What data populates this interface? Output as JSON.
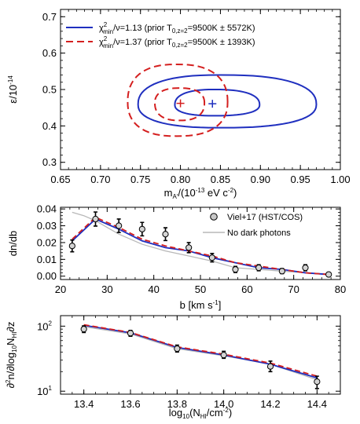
{
  "chart_data": [
    {
      "type": "contour",
      "xlabel": "m_A'/(10^-13 eV c^-2)",
      "ylabel": "ε/10^-14",
      "xlim": [
        0.65,
        1.0
      ],
      "ylim": [
        0.28,
        0.72
      ],
      "xticks": [
        "0.65",
        "0.70",
        "0.75",
        "0.80",
        "0.85",
        "0.90",
        "0.95",
        "1.00"
      ],
      "yticks": [
        "0.3",
        "0.4",
        "0.5",
        "0.6",
        "0.7"
      ],
      "legend_position": "top-left",
      "series": [
        {
          "name": "χ²min/ν=1.13 (prior T0,z=2=9500K ± 5572K)",
          "legend_parts": [
            "χ",
            "2",
            "min",
            "/ν=1.13 (prior T",
            "0,z=2",
            "=9500K ± 5572K)"
          ],
          "color": "#1f2fbf",
          "linestyle": "solid",
          "best_fit": {
            "x": 0.84,
            "y": 0.461
          },
          "contours": [
            {
              "cx": 0.85,
              "cy": 0.459,
              "rx_left": 0.103,
              "rx_right": 0.12,
              "ry_up": 0.081,
              "ry_down": 0.064
            },
            {
              "cx": 0.842,
              "cy": 0.458,
              "rx_left": 0.049,
              "rx_right": 0.057,
              "ry_up": 0.042,
              "ry_down": 0.03
            }
          ]
        },
        {
          "name": "χ²min/ν=1.37 (prior T0,z=2=9500K ± 1393K)",
          "legend_parts": [
            "χ",
            "2",
            "min",
            "/ν=1.37 (prior T",
            "0,z=2",
            "=9500K ± 1393K)"
          ],
          "color": "#d41f1f",
          "linestyle": "dashed",
          "best_fit": {
            "x": 0.8,
            "y": 0.462
          },
          "contours": [
            {
              "cx": 0.795,
              "cy": 0.466,
              "rx_left": 0.061,
              "rx_right": 0.064,
              "ry_up": 0.103,
              "ry_down": 0.094
            },
            {
              "cx": 0.799,
              "cy": 0.463,
              "rx_left": 0.031,
              "rx_right": 0.031,
              "ry_up": 0.041,
              "ry_down": 0.048
            }
          ]
        }
      ]
    },
    {
      "type": "line",
      "xlabel": "b [km s^-1]",
      "ylabel": "dn/db",
      "xlim": [
        20,
        80
      ],
      "ylim": [
        -0.002,
        0.041
      ],
      "xticks": [
        "20",
        "30",
        "40",
        "50",
        "60",
        "70",
        "80"
      ],
      "yticks": [
        "0.00",
        "0.01",
        "0.02",
        "0.03",
        "0.04"
      ],
      "legend_position": "top-right",
      "x": [
        22.5,
        27.5,
        32.5,
        37.5,
        42.5,
        47.5,
        52.5,
        57.5,
        62.5,
        67.5,
        72.5,
        77.5
      ],
      "observations": {
        "name": "Viel+17 (HST/COS)",
        "y": [
          0.018,
          0.034,
          0.03,
          0.028,
          0.025,
          0.017,
          0.011,
          0.004,
          0.005,
          0.003,
          0.005,
          0.001
        ],
        "err": [
          0.0035,
          0.0042,
          0.004,
          0.004,
          0.0038,
          0.003,
          0.0025,
          0.0018,
          0.0018,
          0.0015,
          0.0018,
          0.001
        ]
      },
      "series": [
        {
          "name": "No dark photons",
          "color": "#b8b8b8",
          "x": [
            22.5,
            25,
            27.5,
            32.5,
            37.5,
            42.5,
            47.5,
            52.5,
            57.5,
            62.5,
            67.5,
            72.5,
            77.5
          ],
          "y": [
            0.038,
            0.036,
            0.033,
            0.025,
            0.019,
            0.015,
            0.012,
            0.009,
            0.005,
            0.004,
            0.003,
            0.002,
            0.001
          ]
        },
        {
          "color": "#1f2fbf",
          "x": [
            22.5,
            27.5,
            32.5,
            37.5,
            42.5,
            47.5,
            52.5,
            57.5,
            62.5,
            67.5,
            72.5,
            77.5
          ],
          "y": [
            0.021,
            0.034,
            0.028,
            0.021,
            0.017,
            0.015,
            0.011,
            0.008,
            0.005,
            0.004,
            0.002,
            0.001
          ]
        },
        {
          "color": "#d41f1f",
          "linestyle": "dashed",
          "x": [
            22.5,
            27.5,
            32.5,
            37.5,
            42.5,
            47.5,
            52.5,
            57.5,
            62.5,
            67.5,
            72.5,
            77.5
          ],
          "y": [
            0.022,
            0.035,
            0.029,
            0.022,
            0.018,
            0.015,
            0.012,
            0.008,
            0.006,
            0.004,
            0.002,
            0.001
          ]
        }
      ]
    },
    {
      "type": "line",
      "xlabel": "log10(N_HI/cm^-2)",
      "ylabel": "∂²n/∂log10 N_HI ∂z",
      "xlim": [
        13.3,
        14.5
      ],
      "ylim": [
        9,
        145
      ],
      "yscale": "log",
      "xticks": [
        "13.4",
        "13.6",
        "13.8",
        "14.0",
        "14.2",
        "14.4"
      ],
      "yticks": [
        "10",
        "100"
      ],
      "x": [
        13.4,
        13.6,
        13.8,
        14.0,
        14.2,
        14.4
      ],
      "observations": {
        "y": [
          90,
          78,
          45,
          36,
          24,
          14
        ],
        "low": [
          80,
          70,
          40,
          32,
          20,
          11
        ],
        "high": [
          101,
          86,
          51,
          41,
          29,
          17
        ]
      },
      "series": [
        {
          "color": "#b8b8b8",
          "x": [
            13.4,
            13.6,
            13.8,
            14.0,
            14.2,
            14.4
          ],
          "y": [
            98,
            76,
            45,
            35,
            26,
            15
          ]
        },
        {
          "color": "#1f2fbf",
          "x": [
            13.4,
            13.6,
            13.8,
            14.0,
            14.2,
            14.4
          ],
          "y": [
            103,
            79,
            47,
            36,
            26,
            16
          ]
        },
        {
          "color": "#d41f1f",
          "linestyle": "dashed",
          "x": [
            13.4,
            13.6,
            13.8,
            14.0,
            14.2,
            14.4
          ],
          "y": [
            105,
            80,
            48,
            37,
            27,
            17
          ]
        }
      ]
    }
  ],
  "labels": {
    "p1_x": [
      "m",
      "A'",
      "/(10",
      "-13",
      " eV c",
      "-2",
      ")"
    ],
    "p1_y": [
      "ε/10",
      "-14"
    ],
    "p2_x": [
      "b [km s",
      "-1",
      "]"
    ],
    "p2_y": "dn/db",
    "p3_x": [
      "log",
      "10",
      "(N",
      "HI",
      "/cm",
      "-2",
      ")"
    ],
    "p3_y": [
      "∂",
      "2",
      "n/∂log",
      "10",
      "N",
      "HI",
      "∂z"
    ],
    "p3_ytick_base": "10",
    "p3_ytick_exps": [
      "1",
      "2"
    ]
  }
}
